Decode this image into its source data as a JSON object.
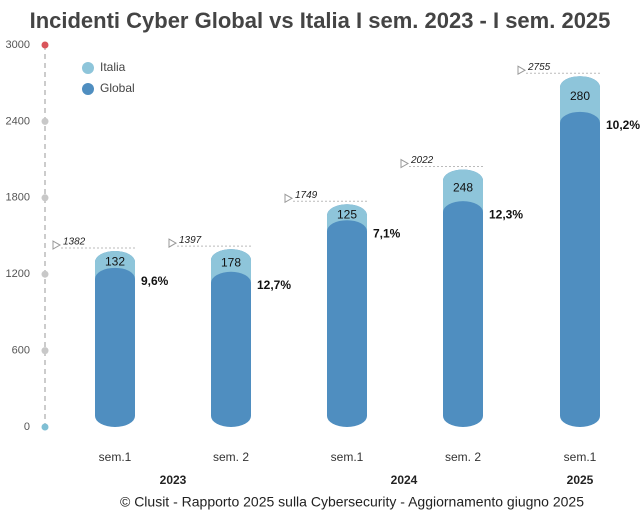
{
  "chart_data": {
    "type": "bar",
    "title": "Incidenti Cyber Global vs Italia I sem. 2023 - I sem. 2025",
    "footer": "© Clusit - Rapporto 2025 sulla Cybersecurity - Aggiornamento giugno 2025",
    "categories": [
      "sem.1",
      "sem. 2",
      "sem.1",
      "sem. 2",
      "sem.1"
    ],
    "year_labels": [
      "2023",
      "2024",
      "2025"
    ],
    "series": [
      {
        "name": "Italia",
        "color": "#8ec5da",
        "values": [
          132,
          178,
          125,
          248,
          280
        ],
        "share_values": [
          9.6,
          12.7,
          7.1,
          12.3,
          10.2
        ],
        "share_labels": [
          "9,6%",
          "12,7%",
          "7,1%",
          "12,3%",
          "10,2%"
        ]
      },
      {
        "name": "Global",
        "color": "#4f8ec0",
        "values": [
          1382,
          1397,
          1749,
          2022,
          2755
        ]
      }
    ],
    "ylim": [
      0,
      3000
    ],
    "yticks": [
      0,
      600,
      1200,
      1800,
      2400,
      3000
    ]
  }
}
